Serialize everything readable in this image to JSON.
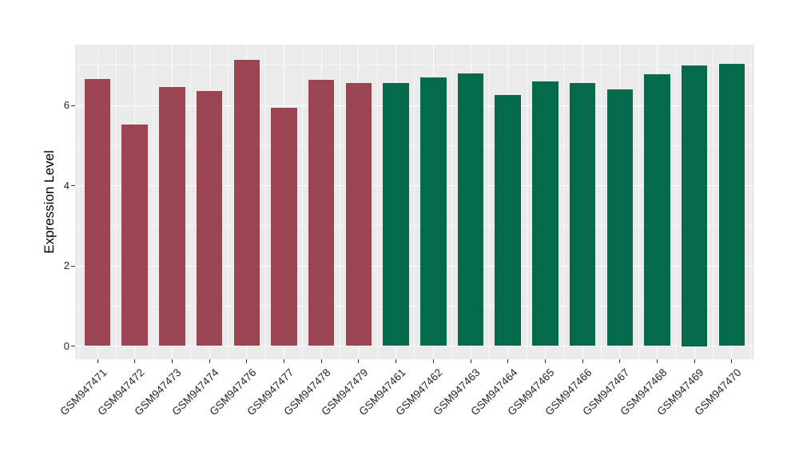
{
  "chart_data": {
    "type": "bar",
    "title": "",
    "xlabel": "",
    "ylabel": "Expression Level",
    "categories": [
      "GSM947471",
      "GSM947472",
      "GSM947473",
      "GSM947474",
      "GSM947476",
      "GSM947477",
      "GSM947478",
      "GSM947479",
      "GSM947461",
      "GSM947462",
      "GSM947463",
      "GSM947464",
      "GSM947465",
      "GSM947466",
      "GSM947467",
      "GSM947468",
      "GSM947469",
      "GSM947470"
    ],
    "values": [
      6.66,
      5.53,
      6.46,
      6.36,
      7.14,
      5.95,
      6.64,
      6.55,
      6.56,
      6.69,
      6.8,
      6.26,
      6.59,
      6.56,
      6.4,
      6.78,
      7.0,
      7.03
    ],
    "bar_colors": [
      "#9C4452",
      "#9C4452",
      "#9C4452",
      "#9C4452",
      "#9C4452",
      "#9C4452",
      "#9C4452",
      "#9C4452",
      "#056A4B",
      "#056A4B",
      "#056A4B",
      "#056A4B",
      "#056A4B",
      "#056A4B",
      "#056A4B",
      "#056A4B",
      "#056A4B",
      "#056A4B"
    ],
    "ylim": [
      0,
      7.49
    ],
    "yticks": [
      0,
      2,
      4,
      6
    ],
    "ytick_labels": [
      "0",
      "2",
      "4",
      "6"
    ],
    "yticks_minor": [
      1,
      3,
      5,
      7
    ],
    "grid": "major-and-minor",
    "legend": "none",
    "xtick_rotation_deg": 45
  },
  "style": {
    "figure_bg": "#FFFFFF",
    "panel_bg": "#EBEBEB",
    "grid_major_color": "#FFFFFF",
    "grid_minor_color": "rgba(255,255,255,0.55)",
    "bar_color_group_left": "#9C4452",
    "bar_color_group_right": "#056A4B",
    "tick_mark_color": "#333333",
    "tick_text_color": "#262626",
    "axis_title_color": "#000000"
  }
}
